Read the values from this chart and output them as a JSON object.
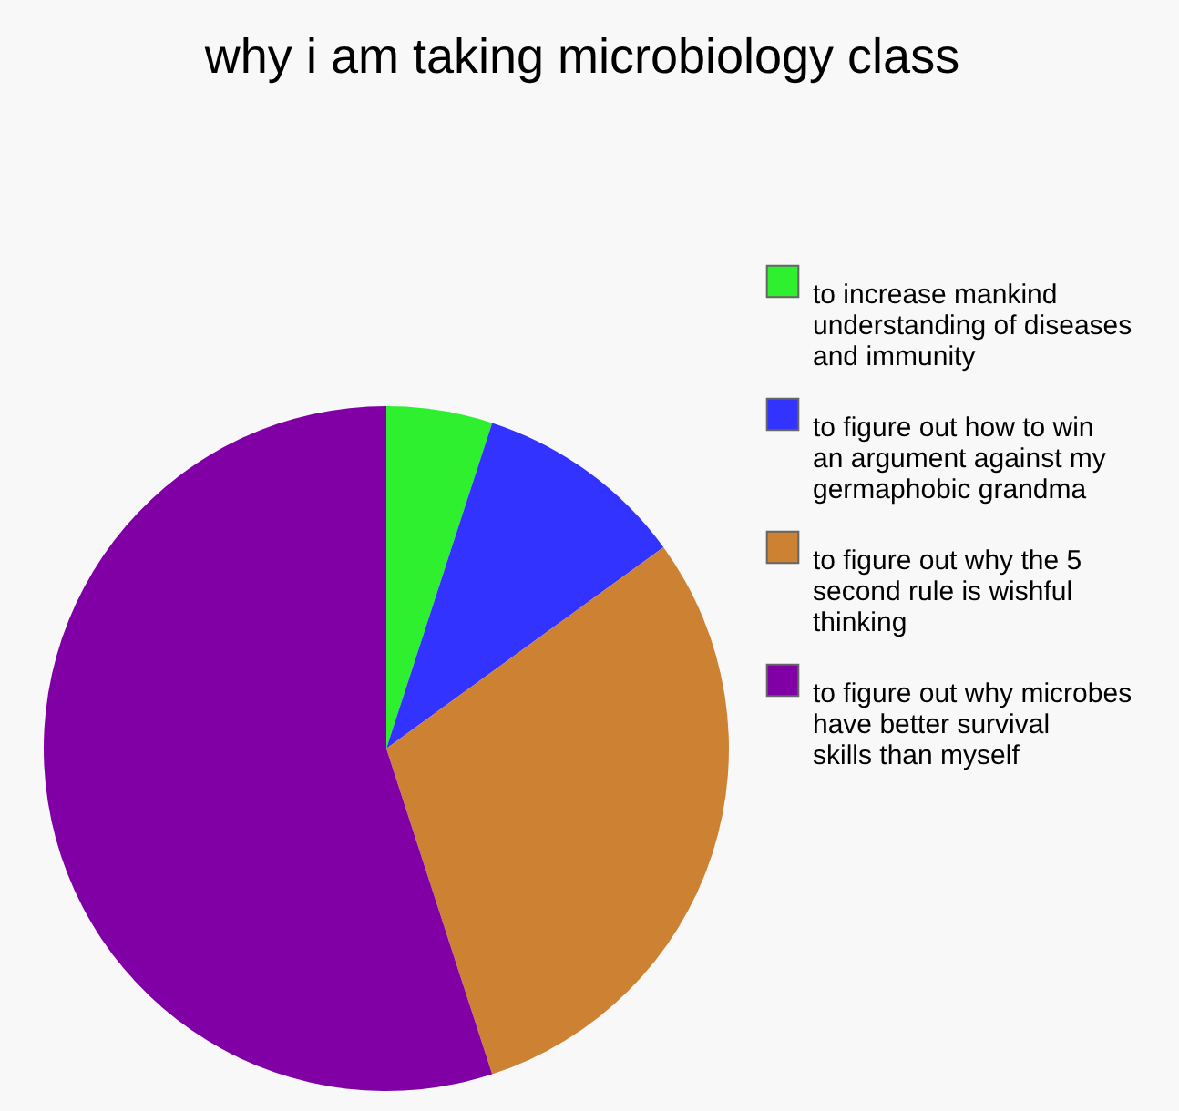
{
  "chart_data": {
    "type": "pie",
    "title": "why i am taking microbiology class",
    "categories": [
      "to increase mankind understanding of diseases and immunity",
      "to figure out how to win an argument against my germaphobic grandma",
      "to figure out why the 5 second rule is wishful thinking",
      "to figure out why microbes have better survival skills than myself"
    ],
    "values": [
      5,
      10,
      30,
      55
    ],
    "colors": [
      "#2ff02f",
      "#3333ff",
      "#cd8132",
      "#8000a6"
    ],
    "legend": "right"
  }
}
